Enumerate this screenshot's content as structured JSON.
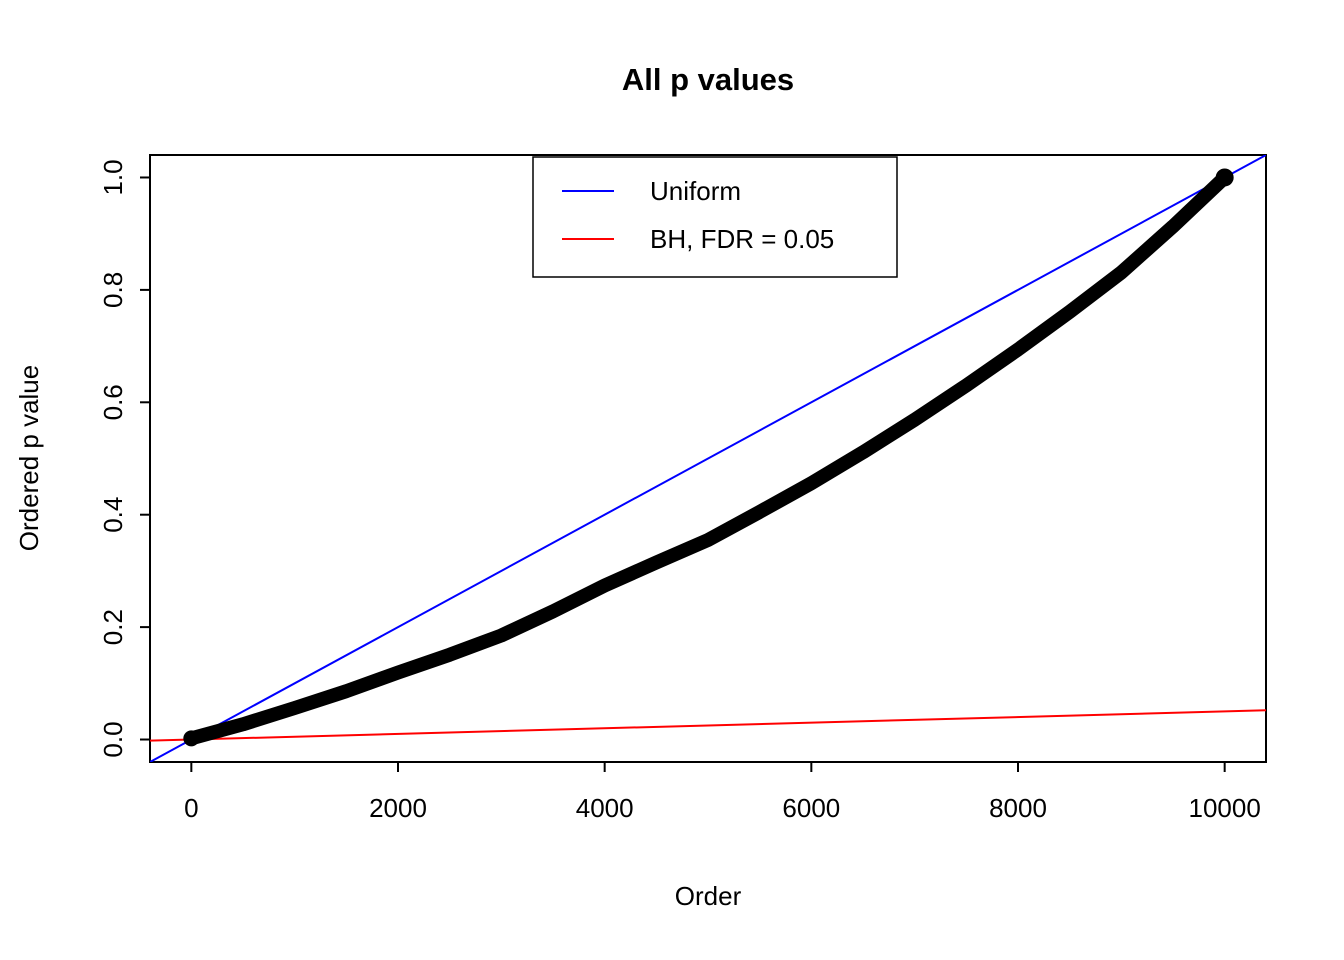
{
  "chart_data": {
    "type": "line",
    "title": "All p values",
    "xlabel": "Order",
    "ylabel": "Ordered p value",
    "xlim": [
      0,
      10000
    ],
    "ylim": [
      0,
      1
    ],
    "grid": false,
    "x_ticks": [
      0,
      2000,
      4000,
      6000,
      8000,
      10000
    ],
    "x_tick_labels": [
      "0",
      "2000",
      "4000",
      "6000",
      "8000",
      "10000"
    ],
    "y_ticks": [
      0.0,
      0.2,
      0.4,
      0.6,
      0.8,
      1.0
    ],
    "y_tick_labels": [
      "0.0",
      "0.2",
      "0.4",
      "0.6",
      "0.8",
      "1.0"
    ],
    "legend": {
      "position": "top-center",
      "entries": [
        {
          "label": "Uniform",
          "color": "#0000ff"
        },
        {
          "label": "BH, FDR = 0.05",
          "color": "#ff0000"
        }
      ]
    },
    "series": [
      {
        "name": "Ordered p values",
        "type": "line",
        "color": "#000000",
        "line_width": 14,
        "x": [
          0,
          500,
          1000,
          1500,
          2000,
          2500,
          3000,
          3500,
          4000,
          4500,
          5000,
          5500,
          6000,
          6500,
          7000,
          7500,
          8000,
          8500,
          9000,
          9500,
          10000
        ],
        "y": [
          0.002,
          0.027,
          0.056,
          0.086,
          0.119,
          0.151,
          0.185,
          0.228,
          0.274,
          0.315,
          0.355,
          0.405,
          0.456,
          0.511,
          0.569,
          0.63,
          0.694,
          0.761,
          0.831,
          0.913,
          1.0
        ]
      },
      {
        "name": "Uniform",
        "type": "abline",
        "color": "#0000ff",
        "intercept": 0,
        "slope": 0.0001,
        "line_width": 2
      },
      {
        "name": "BH, FDR = 0.05",
        "type": "abline",
        "color": "#ff0000",
        "intercept": 0,
        "slope": 5e-06,
        "line_width": 2
      }
    ]
  }
}
